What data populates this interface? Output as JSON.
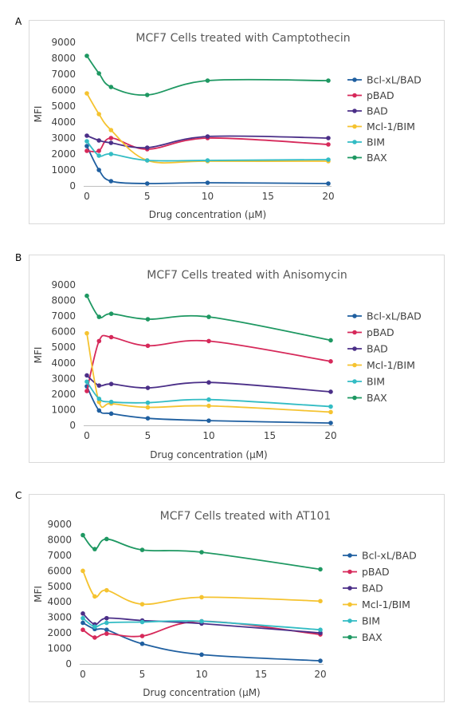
{
  "panels": [
    "A",
    "B",
    "C"
  ],
  "chart_data": [
    {
      "type": "line",
      "title": "MCF7 Cells treated with Camptothecin",
      "xlabel": "Drug concentration (μM)",
      "ylabel": "MFI",
      "xlim": [
        0,
        20
      ],
      "ylim": [
        0,
        9000
      ],
      "xticks": [
        0,
        5,
        10,
        15,
        20
      ],
      "yticks": [
        0,
        1000,
        2000,
        3000,
        4000,
        5000,
        6000,
        7000,
        8000,
        9000
      ],
      "x": [
        0,
        1,
        2,
        5,
        10,
        20
      ],
      "legend_position": "right",
      "series": [
        {
          "name": "Bcl-xL/BAD",
          "color": "#1f5fa0",
          "values": [
            2500,
            1000,
            300,
            150,
            200,
            150
          ]
        },
        {
          "name": "pBAD",
          "color": "#d6295a",
          "values": [
            2200,
            2200,
            3000,
            2300,
            3000,
            2600
          ]
        },
        {
          "name": "BAD",
          "color": "#4b2f88",
          "values": [
            3150,
            2850,
            2700,
            2400,
            3100,
            3000
          ]
        },
        {
          "name": "Mcl-1/BIM",
          "color": "#f5c330",
          "values": [
            5800,
            4500,
            3500,
            1600,
            1550,
            1550
          ]
        },
        {
          "name": "BIM",
          "color": "#33bcc4",
          "values": [
            2800,
            1900,
            2000,
            1600,
            1600,
            1650
          ]
        },
        {
          "name": "BAX",
          "color": "#1e9862",
          "values": [
            8150,
            7050,
            6200,
            5700,
            6600,
            6600
          ]
        }
      ]
    },
    {
      "type": "line",
      "title": "MCF7 Cells treated with Anisomycin",
      "xlabel": "Drug concentration (μM)",
      "ylabel": "MFI",
      "xlim": [
        0,
        20
      ],
      "ylim": [
        0,
        9000
      ],
      "xticks": [
        0,
        5,
        10,
        15,
        20
      ],
      "yticks": [
        0,
        1000,
        2000,
        3000,
        4000,
        5000,
        6000,
        7000,
        8000,
        9000
      ],
      "x": [
        0,
        1,
        2,
        5,
        10,
        20
      ],
      "legend_position": "right",
      "series": [
        {
          "name": "Bcl-xL/BAD",
          "color": "#1f5fa0",
          "values": [
            2500,
            950,
            750,
            450,
            300,
            150
          ]
        },
        {
          "name": "pBAD",
          "color": "#d6295a",
          "values": [
            2200,
            5400,
            5650,
            5100,
            5400,
            4100
          ]
        },
        {
          "name": "BAD",
          "color": "#4b2f88",
          "values": [
            3200,
            2550,
            2650,
            2400,
            2750,
            2150
          ]
        },
        {
          "name": "Mcl-1/BIM",
          "color": "#f5c330",
          "values": [
            5900,
            1500,
            1400,
            1150,
            1250,
            850
          ]
        },
        {
          "name": "BIM",
          "color": "#33bcc4",
          "values": [
            2800,
            1700,
            1500,
            1450,
            1650,
            1200
          ]
        },
        {
          "name": "BAX",
          "color": "#1e9862",
          "values": [
            8300,
            6950,
            7150,
            6800,
            6950,
            5450
          ]
        }
      ]
    },
    {
      "type": "line",
      "title": "MCF7 Cells treated with AT101",
      "xlabel": "Drug concentration (μM)",
      "ylabel": "MFI",
      "xlim": [
        0,
        20
      ],
      "ylim": [
        0,
        9000
      ],
      "xticks": [
        0,
        5,
        10,
        15,
        20
      ],
      "yticks": [
        0,
        1000,
        2000,
        3000,
        4000,
        5000,
        6000,
        7000,
        8000,
        9000
      ],
      "x": [
        0,
        1,
        2,
        5,
        10,
        20
      ],
      "legend_position": "right",
      "series": [
        {
          "name": "Bcl-xL/BAD",
          "color": "#1f5fa0",
          "values": [
            2650,
            2250,
            2200,
            1300,
            600,
            200
          ]
        },
        {
          "name": "pBAD",
          "color": "#d6295a",
          "values": [
            2200,
            1700,
            1950,
            1800,
            2750,
            1900
          ]
        },
        {
          "name": "BAD",
          "color": "#4b2f88",
          "values": [
            3250,
            2550,
            2950,
            2800,
            2600,
            2000
          ]
        },
        {
          "name": "Mcl-1/BIM",
          "color": "#f5c330",
          "values": [
            6000,
            4350,
            4750,
            3850,
            4300,
            4050
          ]
        },
        {
          "name": "BIM",
          "color": "#33bcc4",
          "values": [
            2950,
            2400,
            2650,
            2700,
            2750,
            2200
          ]
        },
        {
          "name": "BAX",
          "color": "#1e9862",
          "values": [
            8300,
            7400,
            8050,
            7350,
            7200,
            6100
          ]
        }
      ]
    }
  ]
}
